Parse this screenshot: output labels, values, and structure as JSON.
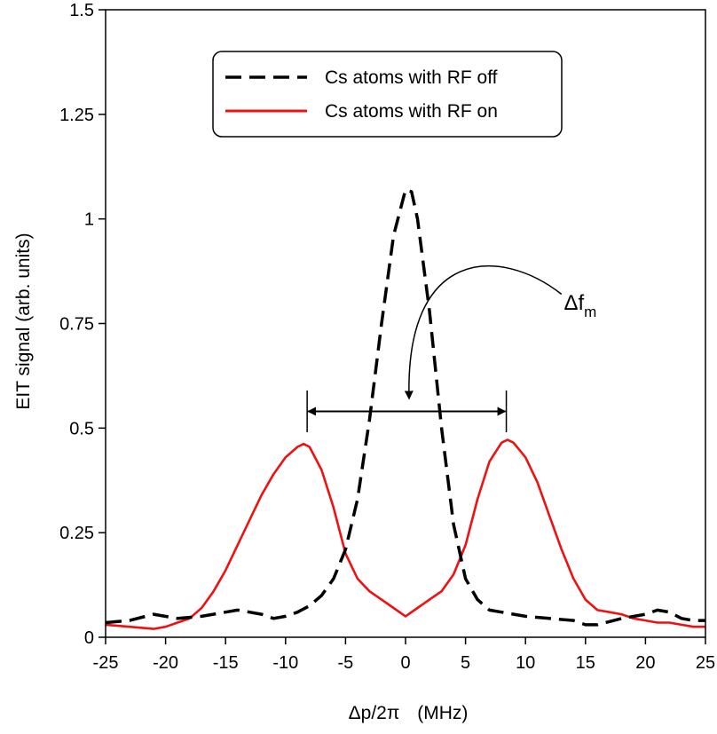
{
  "chart_data": {
    "type": "line",
    "xlim": [
      -25,
      25
    ],
    "ylim": [
      0,
      1.5
    ],
    "xticks": [
      -25,
      -20,
      -15,
      -10,
      -5,
      0,
      5,
      10,
      15,
      20,
      25
    ],
    "xtick_labels": [
      "-25",
      "-20",
      "-15",
      "-10",
      "-5",
      "0",
      "5",
      "10",
      "15",
      "20",
      "25"
    ],
    "yticks": [
      0,
      0.25,
      0.5,
      0.75,
      1,
      1.25,
      1.5
    ],
    "ytick_labels": [
      "0",
      "0.25",
      "0.5",
      "0.75",
      "1",
      "1.25",
      "1.5"
    ],
    "xlabel": {
      "main": "Δp/2π",
      "unit": "(MHz)"
    },
    "ylabel": "EIT signal   (arb. units)",
    "legend_placement": "top-center",
    "series": [
      {
        "name": "Cs atoms with RF off",
        "color": "#000000",
        "style": "dashed",
        "x": [
          -25,
          -23,
          -21,
          -19,
          -17,
          -15,
          -14,
          -13,
          -12,
          -11,
          -10,
          -9,
          -8,
          -7,
          -6,
          -5,
          -4,
          -3,
          -2,
          -1,
          0,
          0.5,
          1,
          2,
          3,
          4,
          5,
          6,
          7,
          8,
          10,
          12,
          14,
          15,
          16,
          18,
          20,
          21,
          22,
          23,
          24,
          25
        ],
        "y": [
          0.035,
          0.04,
          0.055,
          0.045,
          0.05,
          0.06,
          0.065,
          0.06,
          0.055,
          0.045,
          0.05,
          0.06,
          0.075,
          0.1,
          0.14,
          0.21,
          0.33,
          0.52,
          0.75,
          0.96,
          1.07,
          1.065,
          1.0,
          0.78,
          0.5,
          0.27,
          0.14,
          0.09,
          0.065,
          0.06,
          0.05,
          0.045,
          0.04,
          0.03,
          0.03,
          0.045,
          0.055,
          0.065,
          0.06,
          0.045,
          0.04,
          0.04
        ]
      },
      {
        "name": "Cs atoms with RF on",
        "color": "#ee1111",
        "style": "solid",
        "x": [
          -25,
          -23,
          -21,
          -20,
          -19,
          -18,
          -17,
          -16,
          -15,
          -14,
          -13,
          -12,
          -11,
          -10,
          -9,
          -8.5,
          -8,
          -7,
          -6,
          -5,
          -4,
          -3,
          -2,
          -1,
          0,
          1,
          2,
          3,
          4,
          5,
          6,
          7,
          8,
          8.5,
          9,
          10,
          11,
          12,
          13,
          14,
          15,
          16,
          17,
          18,
          19,
          20,
          21,
          22,
          23,
          24,
          25
        ],
        "y": [
          0.03,
          0.025,
          0.02,
          0.025,
          0.035,
          0.045,
          0.07,
          0.11,
          0.16,
          0.22,
          0.28,
          0.34,
          0.39,
          0.43,
          0.455,
          0.462,
          0.455,
          0.4,
          0.31,
          0.2,
          0.14,
          0.11,
          0.09,
          0.07,
          0.05,
          0.07,
          0.09,
          0.11,
          0.15,
          0.22,
          0.33,
          0.42,
          0.465,
          0.472,
          0.465,
          0.43,
          0.37,
          0.29,
          0.21,
          0.14,
          0.09,
          0.065,
          0.06,
          0.055,
          0.045,
          0.04,
          0.035,
          0.035,
          0.03,
          0.025,
          0.025
        ]
      }
    ],
    "annotations": [
      {
        "type": "double-arrow",
        "label": "Δfm",
        "label_main": "Δf",
        "label_sub": "m",
        "x_from": -8.2,
        "x_to": 8.4,
        "y": 0.54,
        "marker_top": 0.59,
        "marker_bottom": 0.49,
        "text_x": 13.2,
        "text_y": 0.8,
        "curve_from": [
          13.0,
          0.82
        ],
        "curve_to": [
          0.3,
          0.57
        ]
      }
    ]
  }
}
